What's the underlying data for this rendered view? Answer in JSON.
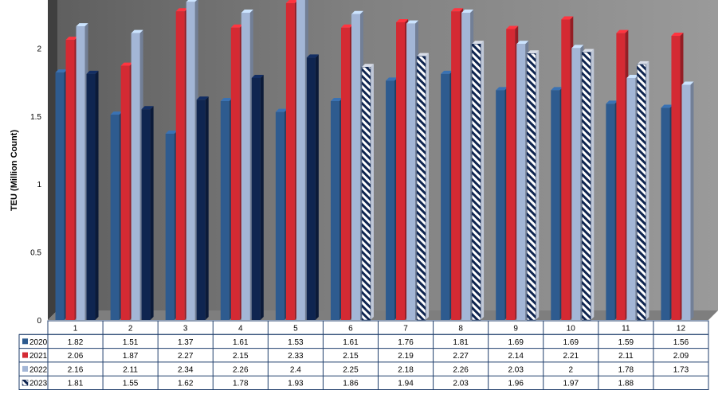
{
  "chart_data": {
    "type": "bar",
    "title": "",
    "xlabel": "",
    "ylabel": "TEU (Million Count)",
    "ylim": [
      0,
      2.5
    ],
    "yticks": [
      "0",
      "0.5",
      "1",
      "1.5",
      "2"
    ],
    "categories": [
      "1",
      "2",
      "3",
      "4",
      "5",
      "6",
      "7",
      "8",
      "9",
      "10",
      "11",
      "12"
    ],
    "series": [
      {
        "name": "2020",
        "color": "#2e5b8f",
        "pattern": "solid",
        "values": [
          1.82,
          1.51,
          1.37,
          1.61,
          1.53,
          1.61,
          1.76,
          1.81,
          1.69,
          1.69,
          1.59,
          1.56
        ]
      },
      {
        "name": "2021",
        "color": "#d42a33",
        "pattern": "solid",
        "values": [
          2.06,
          1.87,
          2.27,
          2.15,
          2.33,
          2.15,
          2.19,
          2.27,
          2.14,
          2.21,
          2.11,
          2.09
        ]
      },
      {
        "name": "2022",
        "color": "#a3b6d6",
        "pattern": "solid",
        "values": [
          2.16,
          2.11,
          2.34,
          2.26,
          2.4,
          2.25,
          2.18,
          2.26,
          2.03,
          2,
          1.78,
          1.73
        ]
      },
      {
        "name": "2023",
        "color": "#0f2550",
        "pattern": "solid-then-hatched",
        "hatched_from_category": "6",
        "values": [
          1.81,
          1.55,
          1.62,
          1.78,
          1.93,
          1.86,
          1.94,
          2.03,
          1.96,
          1.97,
          1.88,
          null
        ]
      }
    ],
    "table": {
      "rows": [
        {
          "series": "2020",
          "cells": [
            "1.82",
            "1.51",
            "1.37",
            "1.61",
            "1.53",
            "1.61",
            "1.76",
            "1.81",
            "1.69",
            "1.69",
            "1.59",
            "1.56"
          ]
        },
        {
          "series": "2021",
          "cells": [
            "2.06",
            "1.87",
            "2.27",
            "2.15",
            "2.33",
            "2.15",
            "2.19",
            "2.27",
            "2.14",
            "2.21",
            "2.11",
            "2.09"
          ]
        },
        {
          "series": "2022",
          "cells": [
            "2.16",
            "2.11",
            "2.34",
            "2.26",
            "2.4",
            "2.25",
            "2.18",
            "2.26",
            "2.03",
            "2",
            "1.78",
            "1.73"
          ]
        },
        {
          "series": "2023",
          "cells": [
            "1.81",
            "1.55",
            "1.62",
            "1.78",
            "1.93",
            "1.86",
            "1.94",
            "2.03",
            "1.96",
            "1.97",
            "1.88",
            ""
          ]
        }
      ]
    },
    "grid": false,
    "legend": "data-table"
  }
}
